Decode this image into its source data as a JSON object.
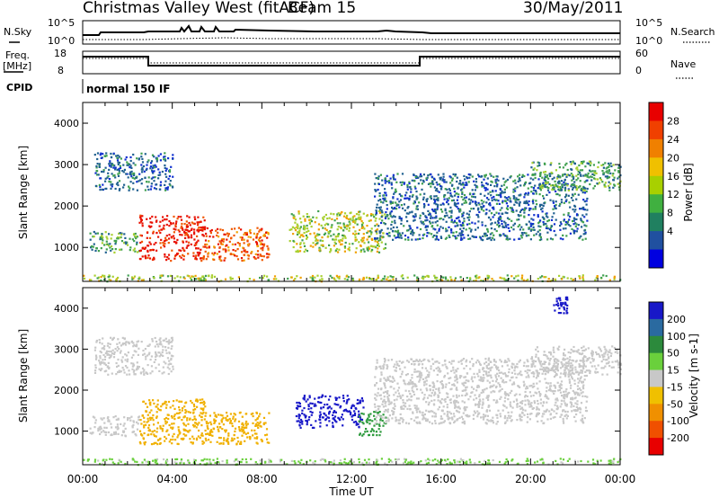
{
  "header": {
    "station": "Christmas Valley West (fitACF)",
    "beam": "Beam 15",
    "date": "30/May/2011"
  },
  "top_panels": {
    "nsky_label": "N.Sky",
    "nsky_ticks": [
      "10^5",
      "10^0"
    ],
    "nsearch_label": "N.Search",
    "nsearch_ticks": [
      "10^5",
      "10^0"
    ],
    "freq_label_1": "Freq.",
    "freq_label_2": "[MHz]",
    "freq_ticks": [
      "18",
      "8"
    ],
    "nave_label": "Nave",
    "nave_ticks": [
      "60",
      "0"
    ],
    "cpid_label": "CPID",
    "cpid_value": "normal 150 IF"
  },
  "chart_data": [
    {
      "type": "heatmap",
      "title": "",
      "ylabel": "Slant Range [km]",
      "xlabel": "",
      "x_ticks": [
        "00:00",
        "04:00",
        "08:00",
        "12:00",
        "16:00",
        "20:00",
        "00:00"
      ],
      "y_ticks": [
        1000,
        2000,
        3000,
        4000
      ],
      "ylim": [
        180,
        4500
      ],
      "xlim_hours": [
        0,
        24
      ],
      "colorbar_label": "Power [dB]",
      "colorbar_ticks": [
        28,
        24,
        20,
        16,
        12,
        8,
        4
      ],
      "colorbar_colors": [
        "#e80000",
        "#f04000",
        "#f08000",
        "#f0c000",
        "#a8d000",
        "#40b040",
        "#208060",
        "#2050a0",
        "#0000e0"
      ],
      "description_regions": [
        {
          "t": [
            0.3,
            2.5
          ],
          "range": [
            900,
            1400
          ],
          "power_db": 12
        },
        {
          "t": [
            2.5,
            5.5
          ],
          "range": [
            700,
            1800
          ],
          "power_db": 28
        },
        {
          "t": [
            5.5,
            8.3
          ],
          "range": [
            700,
            1500
          ],
          "power_db": 24
        },
        {
          "t": [
            9.2,
            13.5
          ],
          "range": [
            900,
            1900
          ],
          "power_db": 16
        },
        {
          "t": [
            13.0,
            22.5
          ],
          "range": [
            1200,
            2800
          ],
          "power_db": 8
        },
        {
          "t": [
            0.5,
            4.0
          ],
          "range": [
            2400,
            3300
          ],
          "power_db": 8
        },
        {
          "t": [
            20.0,
            24.0
          ],
          "range": [
            2400,
            3100
          ],
          "power_db": 12
        },
        {
          "t": [
            0,
            24
          ],
          "range": [
            200,
            350
          ],
          "power_db": 16
        }
      ]
    },
    {
      "type": "heatmap",
      "title": "",
      "ylabel": "Slant Range [km]",
      "xlabel": "Time UT",
      "x_ticks": [
        "00:00",
        "04:00",
        "08:00",
        "12:00",
        "16:00",
        "20:00",
        "00:00"
      ],
      "y_ticks": [
        1000,
        2000,
        3000,
        4000
      ],
      "ylim": [
        180,
        4500
      ],
      "xlim_hours": [
        0,
        24
      ],
      "colorbar_label": "Velocity [m s-1]",
      "colorbar_ticks": [
        200,
        100,
        50,
        15,
        -15,
        -50,
        -100,
        -200
      ],
      "colorbar_colors": [
        "#1818c8",
        "#2a6aa0",
        "#2c8a3c",
        "#6ad03c",
        "#c8c8c8",
        "#f0c000",
        "#f09000",
        "#f05000",
        "#e80000"
      ],
      "description_regions": [
        {
          "t": [
            0.3,
            2.5
          ],
          "range": [
            900,
            1400
          ],
          "velocity": -15
        },
        {
          "t": [
            2.5,
            5.5
          ],
          "range": [
            700,
            1800
          ],
          "velocity": -50
        },
        {
          "t": [
            5.5,
            8.3
          ],
          "range": [
            700,
            1500
          ],
          "velocity": -50
        },
        {
          "t": [
            9.5,
            12.5
          ],
          "range": [
            1100,
            1900
          ],
          "velocity": 200
        },
        {
          "t": [
            12.3,
            13.5
          ],
          "range": [
            900,
            1500
          ],
          "velocity": 50
        },
        {
          "t": [
            13.0,
            22.5
          ],
          "range": [
            1200,
            2800
          ],
          "velocity": 0
        },
        {
          "t": [
            0.5,
            4.0
          ],
          "range": [
            2400,
            3300
          ],
          "velocity": 0
        },
        {
          "t": [
            20.0,
            24.0
          ],
          "range": [
            2400,
            3100
          ],
          "velocity": 0
        },
        {
          "t": [
            21.0,
            21.6
          ],
          "range": [
            3900,
            4300
          ],
          "velocity": 200
        },
        {
          "t": [
            0,
            24
          ],
          "range": [
            200,
            350
          ],
          "velocity": 15
        }
      ]
    }
  ]
}
